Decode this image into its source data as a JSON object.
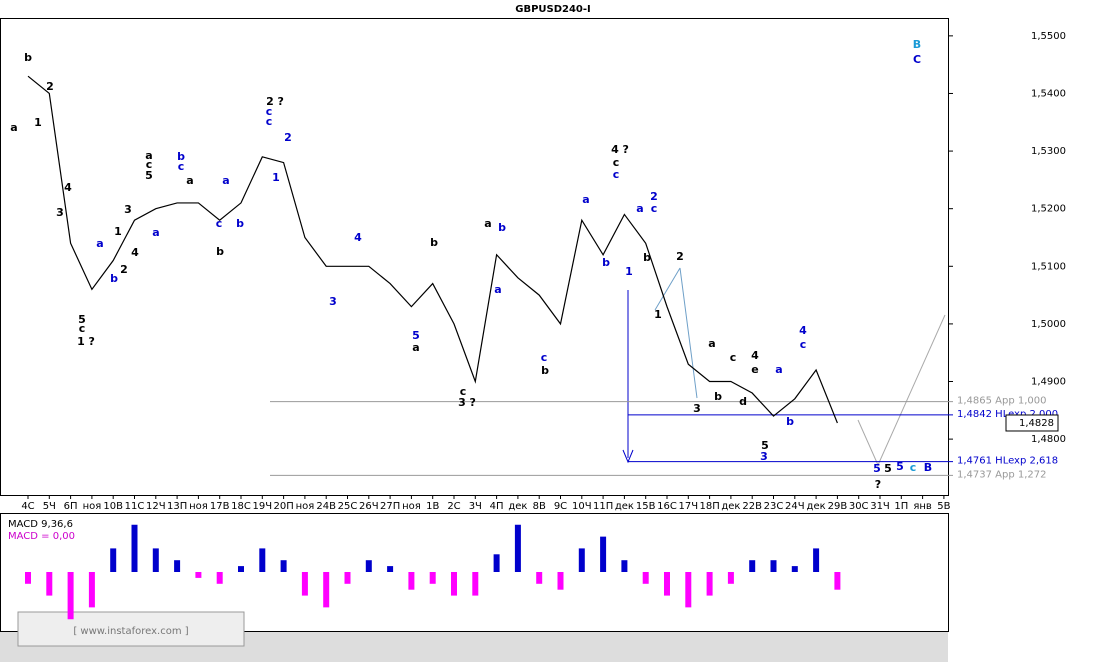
{
  "chart_data": {
    "type": "line",
    "title": "GBPUSD240-I",
    "categories": [
      "4С",
      "5Ч",
      "6П",
      "ноя",
      "10В",
      "11С",
      "12Ч",
      "13П",
      "ноя",
      "17В",
      "18С",
      "19Ч",
      "20П",
      "ноя",
      "24В",
      "25С",
      "26Ч",
      "27П",
      "ноя",
      "1В",
      "2С",
      "3Ч",
      "4П",
      "дек",
      "8В",
      "9С",
      "10Ч",
      "11П",
      "дек",
      "15В",
      "16С",
      "17Ч",
      "18П",
      "дек",
      "22В",
      "23С",
      "24Ч",
      "дек",
      "29В",
      "30С",
      "31Ч",
      "1П",
      "янв",
      "5В"
    ],
    "series": [
      {
        "name": "GBPUSD",
        "color": "#000000",
        "values": [
          1.543,
          1.54,
          1.514,
          1.506,
          1.511,
          1.518,
          1.52,
          1.521,
          1.521,
          1.518,
          1.521,
          1.529,
          1.528,
          1.515,
          1.51,
          1.51,
          1.51,
          1.507,
          1.503,
          1.507,
          1.5,
          1.49,
          1.512,
          1.508,
          1.505,
          1.5,
          1.518,
          1.512,
          1.519,
          1.514,
          1.503,
          1.493,
          1.49,
          1.49,
          1.488,
          1.484,
          1.487,
          1.492,
          1.4828,
          null,
          null,
          null,
          null,
          null
        ]
      }
    ],
    "ylim": [
      1.4703,
      1.5531
    ],
    "yticks": [
      {
        "value": 1.48,
        "label": "1,4800"
      },
      {
        "value": 1.49,
        "label": "1,4900"
      },
      {
        "value": 1.5,
        "label": "1,5000"
      },
      {
        "value": 1.51,
        "label": "1,5100"
      },
      {
        "value": 1.52,
        "label": "1,5200"
      },
      {
        "value": 1.53,
        "label": "1,5300"
      },
      {
        "value": 1.54,
        "label": "1,5400"
      },
      {
        "value": 1.55,
        "label": "1,5500"
      }
    ],
    "last_price": {
      "value": 1.4828,
      "label": "1,4828"
    },
    "levels": [
      {
        "value": 1.4865,
        "label": "1,4865 App 1,000",
        "color": "#999999"
      },
      {
        "value": 1.4842,
        "label": "1,4842 HLexp 2,000",
        "color": "#0000cc"
      },
      {
        "value": 1.4761,
        "label": "1,4761 HLexp 2,618",
        "color": "#0000cc"
      },
      {
        "value": 1.4737,
        "label": "1,4737 App 1,272",
        "color": "#999999"
      }
    ],
    "macd": {
      "label": "MACD 9,36,6",
      "value_label": "MACD = 0,00",
      "ylim": [
        -0.005,
        0.005
      ],
      "positive_color": "#0000cc",
      "negative_color": "#ff00ff",
      "values": [
        -0.001,
        -0.002,
        -0.004,
        -0.003,
        0.002,
        0.004,
        0.002,
        0.001,
        -0.0005,
        -0.001,
        0.0005,
        0.002,
        0.001,
        -0.002,
        -0.003,
        -0.001,
        0.001,
        0.0005,
        -0.0015,
        -0.001,
        -0.002,
        -0.002,
        0.0015,
        0.004,
        -0.001,
        -0.0015,
        0.002,
        0.003,
        0.001,
        -0.001,
        -0.002,
        -0.003,
        -0.002,
        -0.001,
        0.001,
        0.001,
        0.0005,
        0.002,
        -0.0015,
        null,
        null,
        null,
        null,
        null
      ]
    },
    "annotations": [
      "b",
      "a",
      "2",
      "1",
      "4",
      "3",
      "5",
      "c",
      "1 ?",
      "a",
      "b",
      "1",
      "2",
      "3",
      "4",
      "a",
      "c",
      "5",
      "a",
      "b",
      "c",
      "a",
      "c",
      "b",
      "a",
      "b",
      "2 ?",
      "c",
      "c",
      "1",
      "2",
      "4",
      "3",
      "5",
      "a",
      "b",
      "c",
      "3 ?",
      "a",
      "b",
      "a",
      "c",
      "b",
      "4 ?",
      "c",
      "c",
      "a",
      "2",
      "a",
      "c",
      "b",
      "1",
      "b",
      "2",
      "1",
      "a",
      "c",
      "4",
      "e",
      "b",
      "d",
      "3",
      "4",
      "c",
      "a",
      "b",
      "5",
      "3",
      "5",
      "5",
      "5",
      "c",
      "B",
      "?",
      "B",
      "C"
    ],
    "watermark": "[ www.instaforex.com ]"
  }
}
